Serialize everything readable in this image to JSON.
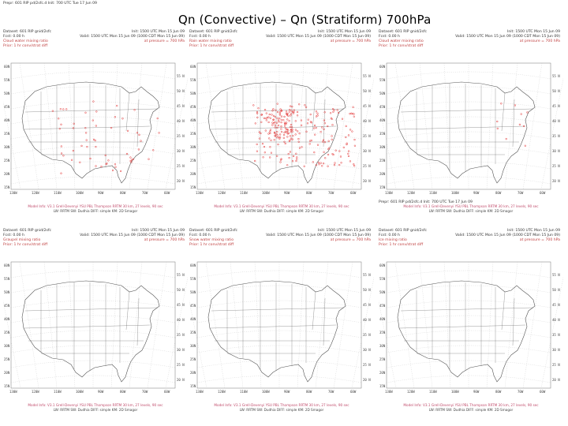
{
  "title": "Qn (Convective) – Qn (Stratiform) 700hPa",
  "meta_common": {
    "dataset": "Dataset: 601 RIP gnid/2sfc",
    "fcst": "Fcst:   0.00 h",
    "init": "Init: 1500 UTC Mon 15 Jun 09",
    "valid": "Valid: 1500 UTC Mon 15 Jun 09 (1000 CDT Mon 15 Jun 09)",
    "footer1": "Model Info: V3.1     Grell-Devenyi     YSU PBL     Thompson     RRTM     30 km, 27 levels, 90 sec",
    "footer2": "LW: RRTM   SW: Dudhia   DIFF: simple   KM: 2D Smagor",
    "pressure": "at pressure = 700 hPa",
    "prior_line": "Prior: 1 hr conv/strat diff",
    "extra_header": "Prepr: 601 RIP pd/2sfc.d   Init: 700 UTC Tue 17 Jun 09"
  },
  "panels": [
    {
      "id": "p1",
      "field": "Cloud water mixing ratio",
      "has_extra_header": true,
      "dots": "sparse"
    },
    {
      "id": "p2",
      "field": "Rain water mixing ratio",
      "has_extra_header": false,
      "dots": "dense"
    },
    {
      "id": "p3",
      "field": "Cloud water mixing ratio",
      "has_extra_header": false,
      "dots": "few"
    },
    {
      "id": "p4",
      "field": "Graupel mixing ratio",
      "has_extra_header": false,
      "dots": "none"
    },
    {
      "id": "p5",
      "field": "Snow water mixing ratio",
      "has_extra_header": false,
      "dots": "none"
    },
    {
      "id": "p6",
      "field": "Ice mixing ratio",
      "has_extra_header": true,
      "dots": "none"
    }
  ],
  "axis": {
    "left": [
      "60N",
      "55N",
      "50N",
      "45N",
      "40N",
      "35N",
      "30N",
      "25N",
      "20N",
      "15N"
    ],
    "right": [
      "55 N",
      "50 N",
      "45 N",
      "40 N",
      "35 N",
      "30 N",
      "25 N",
      "20 N"
    ],
    "bottom": [
      "130W",
      "120W",
      "110W",
      "100W",
      "90W",
      "80W",
      "70W",
      "60W"
    ]
  },
  "colors": {
    "map_line": "#555555",
    "dot_red": "#e02020",
    "grid": "#bdbdbd"
  }
}
